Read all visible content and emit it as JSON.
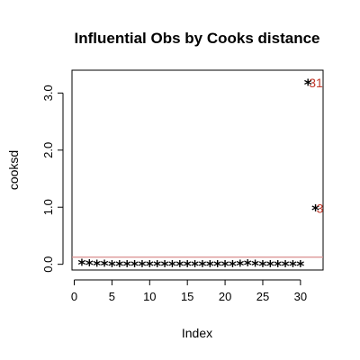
{
  "chart_data": {
    "type": "scatter",
    "title": "Influential Obs by Cooks distance",
    "xlabel": "Index",
    "ylabel": "cooksd",
    "xlim": [
      0,
      32
    ],
    "ylim": [
      0,
      3.2
    ],
    "x_ticks": [
      0,
      5,
      10,
      15,
      20,
      25,
      30
    ],
    "y_ticks": [
      0.0,
      1.0,
      2.0,
      3.0
    ],
    "y_tick_labels": [
      "0.0",
      "1.0",
      "2.0",
      "3.0"
    ],
    "x_tick_labels": [
      "0",
      "5",
      "10",
      "15",
      "20",
      "25",
      "30"
    ],
    "grid": false,
    "marker": "*",
    "x": [
      1,
      2,
      3,
      4,
      5,
      6,
      7,
      8,
      9,
      10,
      11,
      12,
      13,
      14,
      15,
      16,
      17,
      18,
      19,
      20,
      21,
      22,
      23,
      24,
      25,
      26,
      27,
      28,
      29,
      30,
      31,
      32
    ],
    "y": [
      0.03,
      0.02,
      0.01,
      0.01,
      0.0,
      0.0,
      0.0,
      0.0,
      0.0,
      0.0,
      0.0,
      0.0,
      0.0,
      0.0,
      0.0,
      0.0,
      0.0,
      0.0,
      0.0,
      0.0,
      0.0,
      0.01,
      0.02,
      0.01,
      0.0,
      0.0,
      0.0,
      0.0,
      0.0,
      0.0,
      3.18,
      0.98
    ],
    "reference_line": {
      "y": 0.125,
      "color": "#d98c8c"
    },
    "annotations": [
      {
        "x": 31,
        "y": 3.18,
        "text": "31",
        "color": "#c0392b"
      },
      {
        "x": 32,
        "y": 0.98,
        "text": "3",
        "color": "#c0392b"
      }
    ]
  }
}
